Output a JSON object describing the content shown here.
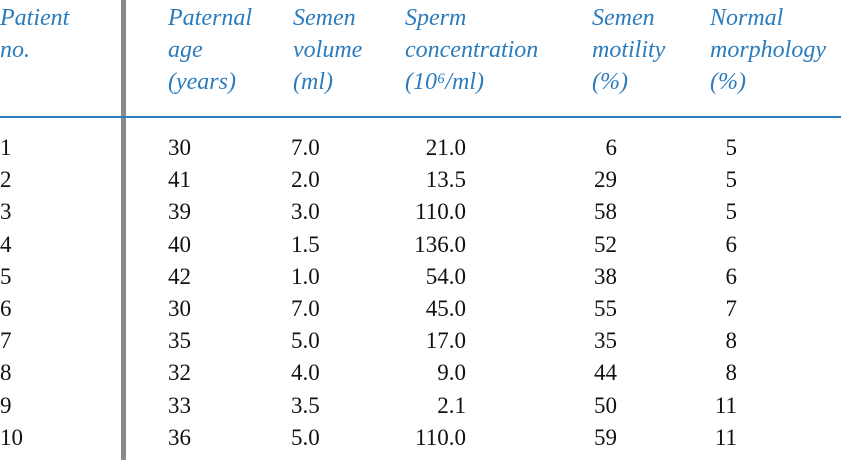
{
  "table": {
    "header": [
      [
        "Patient",
        "no."
      ],
      [
        "Paternal",
        "age",
        "(years)"
      ],
      [
        "Semen",
        "volume",
        "(ml)"
      ],
      [
        "Sperm",
        "concentration",
        "(10⁶/ml)"
      ],
      [
        "Semen",
        "motility",
        "(%)"
      ],
      [
        "Normal",
        "morphology",
        "(%)"
      ]
    ],
    "rows": [
      [
        "1",
        "30",
        "7.0",
        "21.0",
        "6",
        "5"
      ],
      [
        "2",
        "41",
        "2.0",
        "13.5",
        "29",
        "5"
      ],
      [
        "3",
        "39",
        "3.0",
        "110.0",
        "58",
        "5"
      ],
      [
        "4",
        "40",
        "1.5",
        "136.0",
        "52",
        "6"
      ],
      [
        "5",
        "42",
        "1.0",
        "54.0",
        "38",
        "6"
      ],
      [
        "6",
        "30",
        "7.0",
        "45.0",
        "55",
        "7"
      ],
      [
        "7",
        "35",
        "5.0",
        "17.0",
        "35",
        "8"
      ],
      [
        "8",
        "32",
        "4.0",
        "9.0",
        "44",
        "8"
      ],
      [
        "9",
        "33",
        "3.5",
        "2.1",
        "50",
        "11"
      ],
      [
        "10",
        "36",
        "5.0",
        "110.0",
        "59",
        "11"
      ]
    ]
  }
}
